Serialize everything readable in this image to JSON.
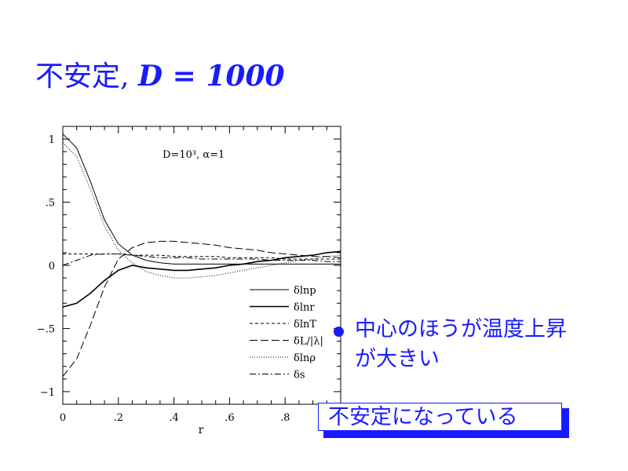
{
  "title": {
    "prefix": "不安定, ",
    "formula": "D = 1000"
  },
  "bullet_text": "中心のほうが温度上昇が大きい",
  "box_text": "不安定になっている",
  "colors": {
    "accent": "#1a1aff",
    "plot": "#000000"
  },
  "chart_data": {
    "type": "line",
    "annotation": "D=10³, α=1",
    "xlabel": "r",
    "ylabel": "",
    "xlim": [
      0,
      1
    ],
    "ylim": [
      -1.1,
      1.1
    ],
    "x_ticks": [
      {
        "value": 0,
        "label": "0"
      },
      {
        "value": 0.2,
        "label": ".2"
      },
      {
        "value": 0.4,
        "label": ".4"
      },
      {
        "value": 0.6,
        "label": ".6"
      },
      {
        "value": 0.8,
        "label": ".8"
      }
    ],
    "y_ticks": [
      {
        "value": 1,
        "label": "1"
      },
      {
        "value": 0.5,
        "label": ".5"
      },
      {
        "value": 0,
        "label": "0"
      },
      {
        "value": -0.5,
        "label": "−.5"
      },
      {
        "value": -1,
        "label": "−1"
      }
    ],
    "x": [
      0,
      0.05,
      0.1,
      0.15,
      0.2,
      0.25,
      0.3,
      0.35,
      0.4,
      0.45,
      0.5,
      0.55,
      0.6,
      0.65,
      0.7,
      0.75,
      0.8,
      0.85,
      0.9,
      0.95,
      1.0
    ],
    "legend_position": "bottom-right",
    "series": [
      {
        "name": "δlnp",
        "dash": "solid",
        "width": 1.0,
        "values": [
          1.04,
          0.93,
          0.66,
          0.36,
          0.17,
          0.08,
          0.04,
          0.02,
          0.01,
          0.01,
          0.01,
          0.01,
          0.01,
          0.01,
          0.01,
          0.01,
          0.01,
          0.01,
          0.01,
          0.01,
          0.01
        ]
      },
      {
        "name": "δlnr",
        "dash": "solid",
        "width": 1.6,
        "values": [
          -0.33,
          -0.3,
          -0.22,
          -0.12,
          -0.04,
          0.0,
          -0.02,
          -0.03,
          -0.04,
          -0.04,
          -0.03,
          -0.02,
          0.0,
          0.01,
          0.03,
          0.04,
          0.06,
          0.07,
          0.08,
          0.1,
          0.11
        ]
      },
      {
        "name": "δlnT",
        "dash": "4,3",
        "width": 1.0,
        "values": [
          0.09,
          0.09,
          0.09,
          0.09,
          0.09,
          0.08,
          0.08,
          0.08,
          0.07,
          0.07,
          0.07,
          0.07,
          0.06,
          0.06,
          0.06,
          0.06,
          0.05,
          0.05,
          0.05,
          0.05,
          0.05
        ]
      },
      {
        "name": "δL/|λ|",
        "dash": "10,4",
        "width": 1.0,
        "values": [
          -0.88,
          -0.74,
          -0.47,
          -0.17,
          0.05,
          0.14,
          0.18,
          0.19,
          0.19,
          0.18,
          0.17,
          0.16,
          0.14,
          0.13,
          0.12,
          0.1,
          0.09,
          0.08,
          0.07,
          0.07,
          0.06
        ]
      },
      {
        "name": "δlnρ",
        "dash": "1,2",
        "width": 1.0,
        "values": [
          0.97,
          0.86,
          0.6,
          0.31,
          0.12,
          0.02,
          -0.05,
          -0.08,
          -0.1,
          -0.1,
          -0.09,
          -0.08,
          -0.06,
          -0.04,
          -0.02,
          0.0,
          0.02,
          0.04,
          0.05,
          0.07,
          0.08
        ]
      },
      {
        "name": "δs",
        "dash": "8,3,2,3",
        "width": 1.0,
        "values": [
          0.0,
          0.04,
          0.08,
          0.09,
          0.09,
          0.08,
          0.07,
          0.06,
          0.06,
          0.06,
          0.05,
          0.05,
          0.05,
          0.05,
          0.05,
          0.04,
          0.04,
          0.04,
          0.04,
          0.03,
          0.03
        ]
      }
    ]
  }
}
